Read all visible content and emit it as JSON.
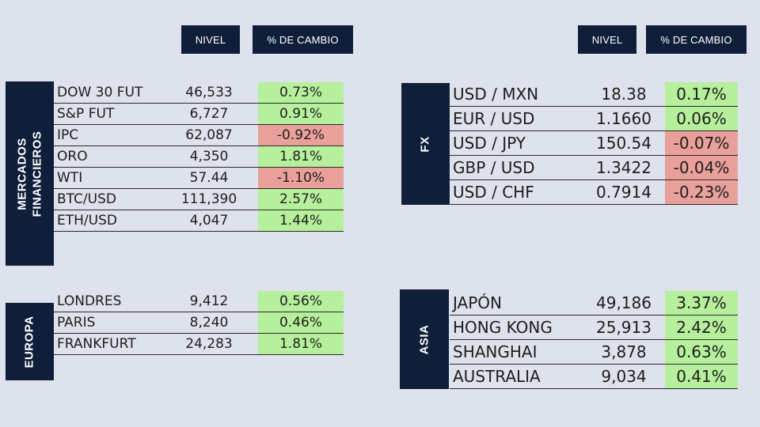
{
  "colors": {
    "background": "#dde2ec",
    "navy": "#0f1f3a",
    "positive": "#b7f09c",
    "negative": "#e9a09b"
  },
  "headers": {
    "left_level": "NIVEL",
    "left_change": "% DE CAMBIO",
    "right_level": "NIVEL",
    "right_change": "% DE CAMBIO"
  },
  "sections": {
    "mercados": {
      "label_line1": "MERCADOS",
      "label_line2": "FINANCIEROS",
      "rows": [
        {
          "name": "DOW 30 FUT",
          "level": "46,533",
          "change": "0.73%",
          "direction": "up"
        },
        {
          "name": "S&P FUT",
          "level": "6,727",
          "change": "0.91%",
          "direction": "up"
        },
        {
          "name": "IPC",
          "level": "62,087",
          "change": "-0.92%",
          "direction": "down"
        },
        {
          "name": "ORO",
          "level": "4,350",
          "change": "1.81%",
          "direction": "up"
        },
        {
          "name": "WTI",
          "level": "57.44",
          "change": "-1.10%",
          "direction": "down"
        },
        {
          "name": "BTC/USD",
          "level": "111,390",
          "change": "2.57%",
          "direction": "up"
        },
        {
          "name": "ETH/USD",
          "level": "4,047",
          "change": "1.44%",
          "direction": "up"
        }
      ]
    },
    "europa": {
      "label": "EUROPA",
      "rows": [
        {
          "name": "LONDRES",
          "level": "9,412",
          "change": "0.56%",
          "direction": "up"
        },
        {
          "name": "PARIS",
          "level": "8,240",
          "change": "0.46%",
          "direction": "up"
        },
        {
          "name": "FRANKFURT",
          "level": "24,283",
          "change": "1.81%",
          "direction": "up"
        }
      ]
    },
    "fx": {
      "label": "FX",
      "rows": [
        {
          "name": "USD / MXN",
          "level": "18.38",
          "change": "0.17%",
          "direction": "up"
        },
        {
          "name": "EUR / USD",
          "level": "1.1660",
          "change": "0.06%",
          "direction": "up"
        },
        {
          "name": "USD / JPY",
          "level": "150.54",
          "change": "-0.07%",
          "direction": "down"
        },
        {
          "name": "GBP / USD",
          "level": "1.3422",
          "change": "-0.04%",
          "direction": "down"
        },
        {
          "name": "USD / CHF",
          "level": "0.7914",
          "change": "-0.23%",
          "direction": "down"
        }
      ]
    },
    "asia": {
      "label": "ASIA",
      "rows": [
        {
          "name": "JAPÓN",
          "level": "49,186",
          "change": "3.37%",
          "direction": "up"
        },
        {
          "name": "HONG KONG",
          "level": "25,913",
          "change": "2.42%",
          "direction": "up"
        },
        {
          "name": "SHANGHAI",
          "level": "3,878",
          "change": "0.63%",
          "direction": "up"
        },
        {
          "name": "AUSTRALIA",
          "level": "9,034",
          "change": "0.41%",
          "direction": "up"
        }
      ]
    }
  }
}
